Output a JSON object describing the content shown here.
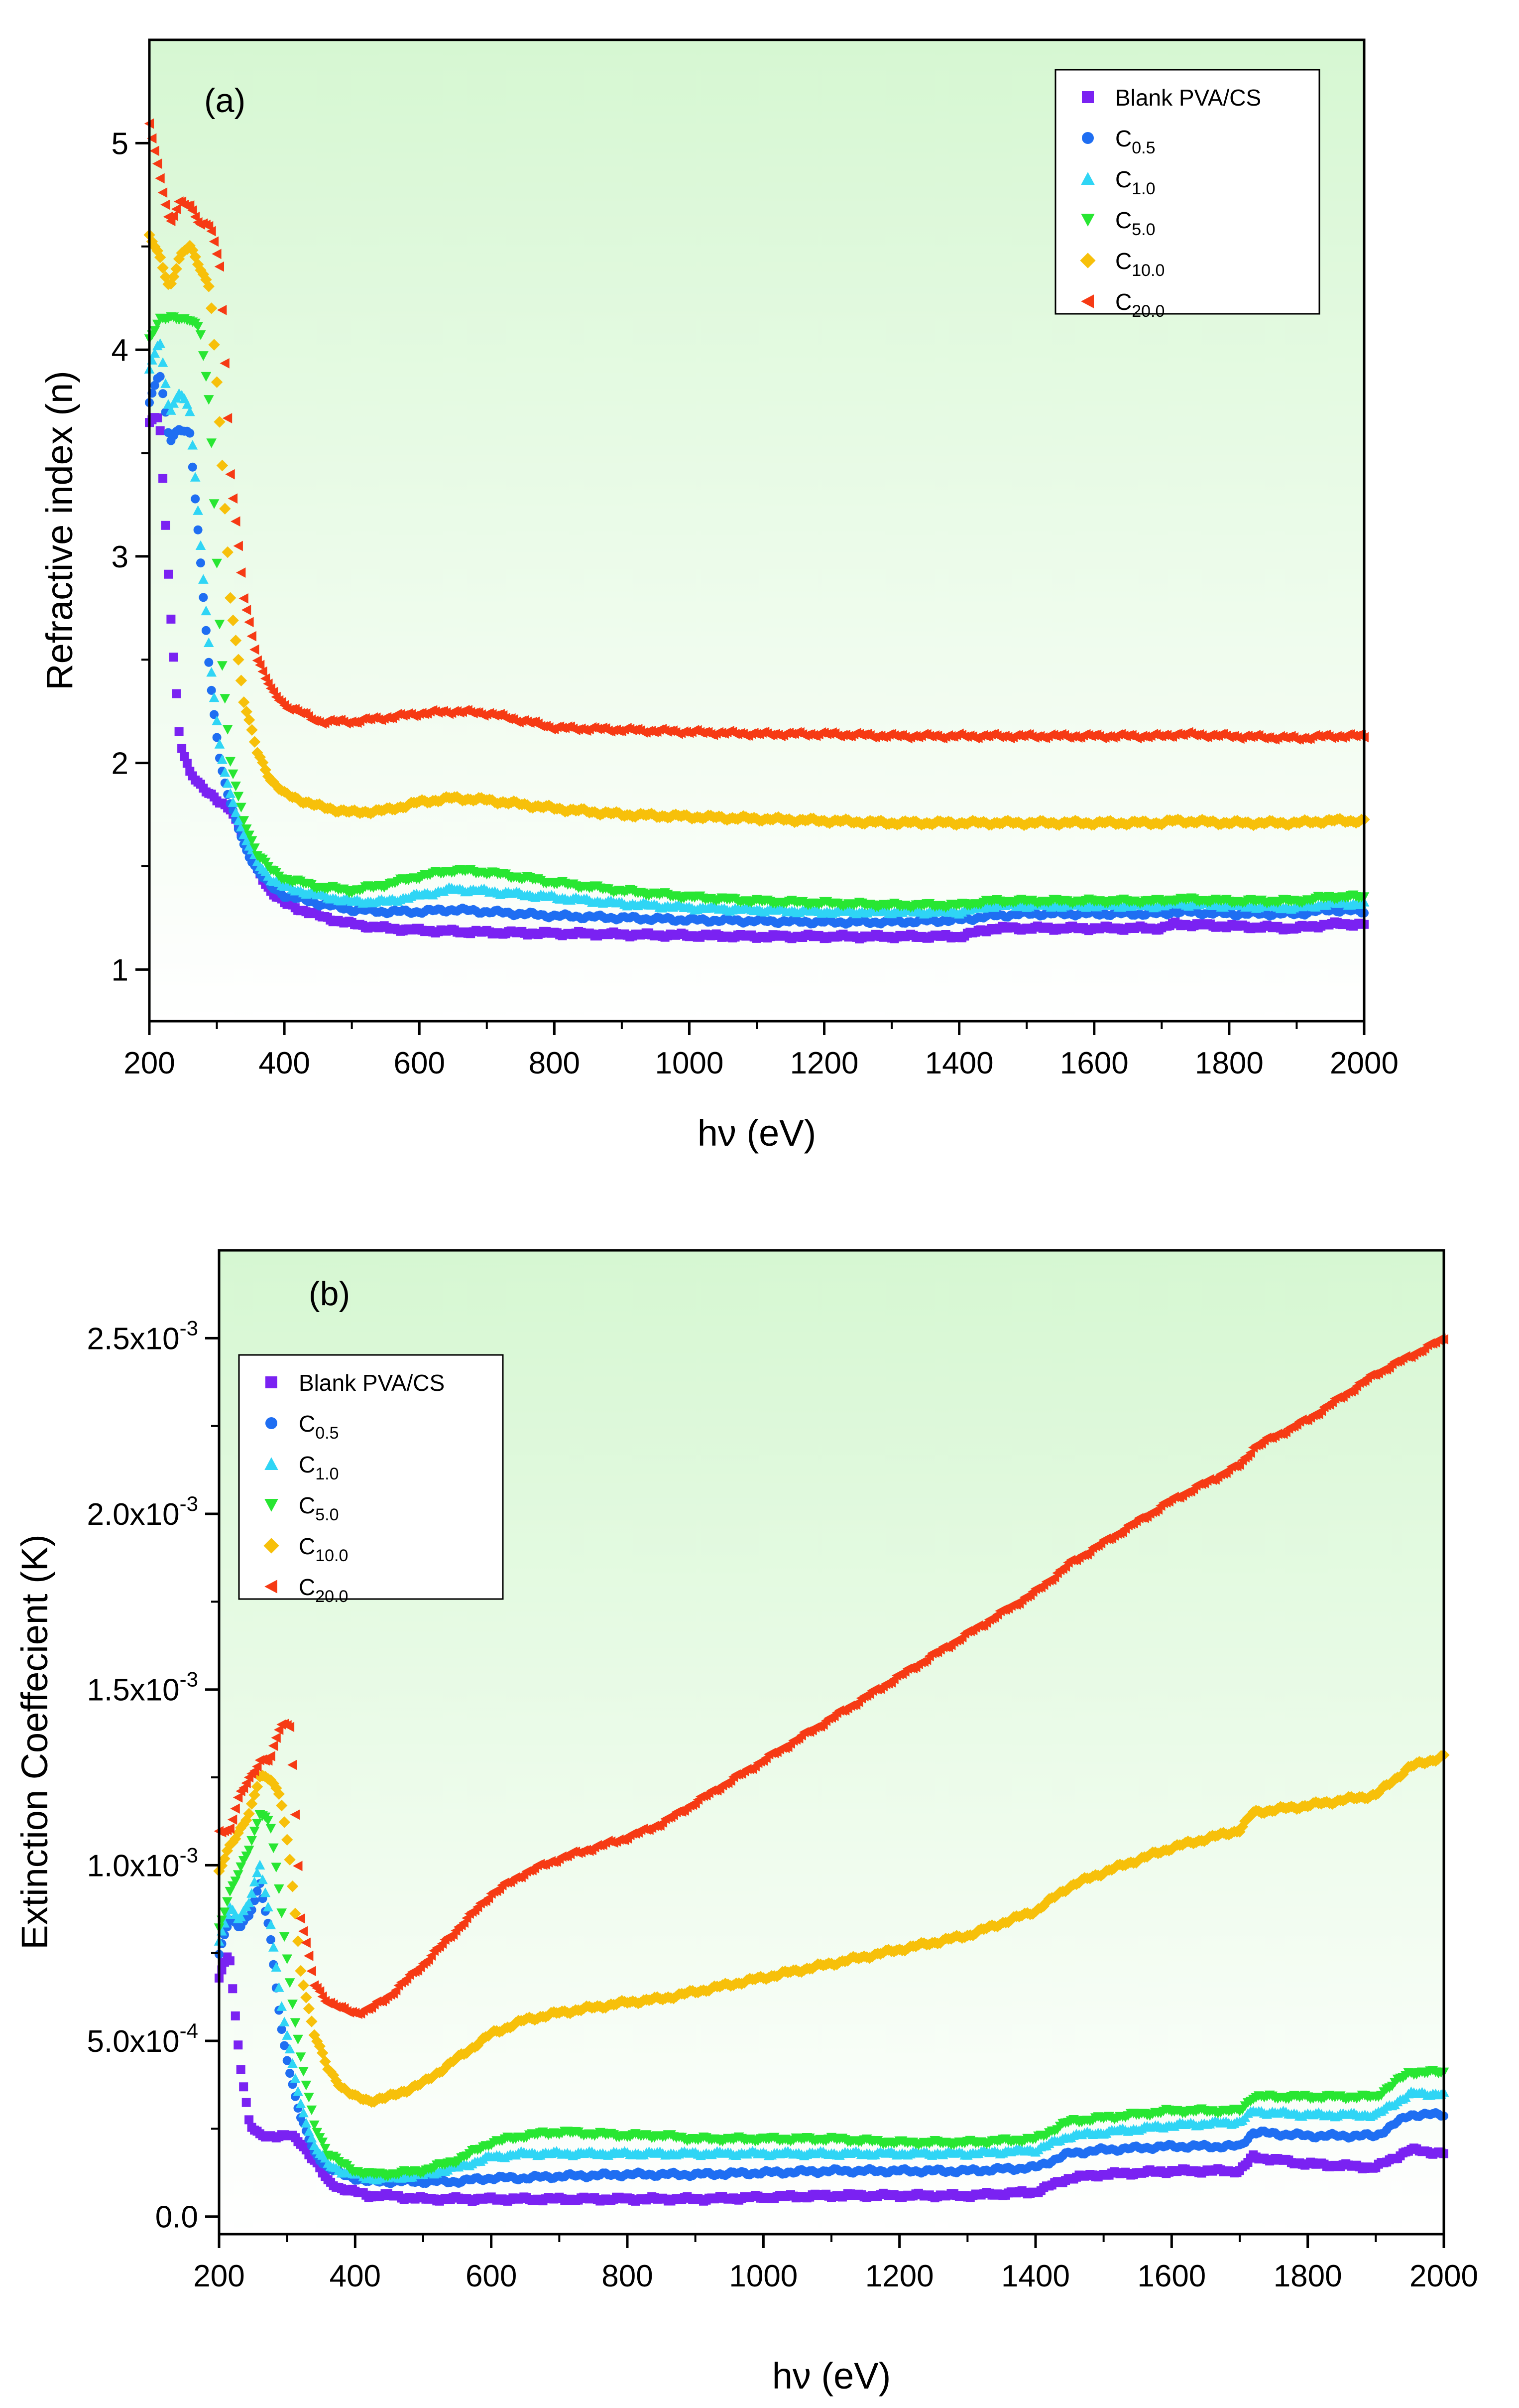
{
  "legend_entries": [
    {
      "id": "blank",
      "base": "Blank PVA/CS",
      "sub": "",
      "marker": "square",
      "color": "#7a22f2"
    },
    {
      "id": "c05",
      "base": "C",
      "sub": "0.5",
      "marker": "circle",
      "color": "#1f6ef2"
    },
    {
      "id": "c10",
      "base": "C",
      "sub": "1.0",
      "marker": "triangle-up",
      "color": "#2fd5f5"
    },
    {
      "id": "c50",
      "base": "C",
      "sub": "5.0",
      "marker": "triangle-down",
      "color": "#28e632"
    },
    {
      "id": "c100",
      "base": "C",
      "sub": "10.0",
      "marker": "diamond",
      "color": "#f7c00a"
    },
    {
      "id": "c200",
      "base": "C",
      "sub": "20.0",
      "marker": "triangle-left",
      "color": "#f63a14"
    }
  ],
  "chart_data": [
    {
      "type": "scatter",
      "panel_label": "(a)",
      "title": "",
      "xlabel": "hν (eV)",
      "ylabel": "Refractive index (n)",
      "xlim": [
        200,
        2000
      ],
      "ylim": [
        0.75,
        5.5
      ],
      "xticks": [
        200,
        400,
        600,
        800,
        1000,
        1200,
        1400,
        1600,
        1800,
        2000
      ],
      "yticks": [
        1,
        2,
        3,
        4,
        5
      ],
      "ytick_labels": [
        "1",
        "2",
        "3",
        "4",
        "5"
      ],
      "legend_position": "top-right",
      "background": "gradient white-to-light-green",
      "x": [
        200,
        215,
        230,
        245,
        260,
        275,
        290,
        305,
        320,
        340,
        360,
        380,
        400,
        450,
        500,
        550,
        600,
        650,
        700,
        800,
        900,
        1000,
        1100,
        1200,
        1300,
        1400,
        1450,
        1500,
        1600,
        1700,
        1720,
        1800,
        1900,
        1950,
        2000
      ],
      "series": [
        {
          "name": "Blank PVA/CS",
          "values": [
            3.65,
            3.67,
            2.8,
            2.1,
            1.95,
            1.9,
            1.85,
            1.8,
            1.78,
            1.65,
            1.48,
            1.38,
            1.32,
            1.26,
            1.22,
            1.2,
            1.19,
            1.185,
            1.18,
            1.175,
            1.17,
            1.165,
            1.16,
            1.16,
            1.16,
            1.16,
            1.2,
            1.2,
            1.2,
            1.2,
            1.22,
            1.21,
            1.2,
            1.22,
            1.22
          ]
        },
        {
          "name": "C0.5",
          "values": [
            3.75,
            3.9,
            3.55,
            3.62,
            3.6,
            3.0,
            2.4,
            2.0,
            1.8,
            1.6,
            1.48,
            1.4,
            1.36,
            1.32,
            1.29,
            1.28,
            1.28,
            1.29,
            1.28,
            1.26,
            1.25,
            1.24,
            1.235,
            1.23,
            1.23,
            1.24,
            1.26,
            1.27,
            1.27,
            1.27,
            1.28,
            1.27,
            1.27,
            1.29,
            1.28
          ]
        },
        {
          "name": "C1.0",
          "values": [
            3.9,
            4.05,
            3.7,
            3.8,
            3.7,
            3.1,
            2.5,
            2.05,
            1.85,
            1.65,
            1.52,
            1.44,
            1.4,
            1.36,
            1.33,
            1.33,
            1.36,
            1.39,
            1.38,
            1.35,
            1.32,
            1.3,
            1.29,
            1.28,
            1.28,
            1.28,
            1.31,
            1.31,
            1.31,
            1.31,
            1.32,
            1.31,
            1.3,
            1.32,
            1.32
          ]
        },
        {
          "name": "C5.0",
          "values": [
            4.05,
            4.15,
            4.15,
            4.15,
            4.15,
            4.1,
            3.7,
            2.6,
            2.0,
            1.72,
            1.56,
            1.48,
            1.44,
            1.4,
            1.38,
            1.41,
            1.45,
            1.48,
            1.47,
            1.42,
            1.38,
            1.35,
            1.33,
            1.32,
            1.31,
            1.31,
            1.33,
            1.33,
            1.33,
            1.33,
            1.34,
            1.33,
            1.33,
            1.35,
            1.35
          ]
        },
        {
          "name": "C10.0",
          "values": [
            4.55,
            4.45,
            4.3,
            4.45,
            4.5,
            4.4,
            4.3,
            3.6,
            2.8,
            2.3,
            2.05,
            1.92,
            1.85,
            1.79,
            1.76,
            1.77,
            1.81,
            1.83,
            1.82,
            1.78,
            1.75,
            1.74,
            1.73,
            1.72,
            1.71,
            1.71,
            1.71,
            1.71,
            1.71,
            1.71,
            1.72,
            1.71,
            1.71,
            1.72,
            1.72
          ]
        },
        {
          "name": "C20.0",
          "values": [
            5.1,
            4.85,
            4.6,
            4.72,
            4.7,
            4.6,
            4.6,
            4.4,
            3.4,
            2.8,
            2.5,
            2.35,
            2.28,
            2.2,
            2.2,
            2.22,
            2.24,
            2.25,
            2.24,
            2.17,
            2.16,
            2.15,
            2.14,
            2.14,
            2.13,
            2.13,
            2.13,
            2.13,
            2.13,
            2.13,
            2.14,
            2.13,
            2.12,
            2.13,
            2.13
          ]
        }
      ]
    },
    {
      "type": "scatter",
      "panel_label": "(b)",
      "title": "",
      "xlabel": "hν (eV)",
      "ylabel": "Extinction Coeffecient (K)",
      "xlim": [
        200,
        2000
      ],
      "ylim": [
        -5e-05,
        0.00275
      ],
      "xticks": [
        200,
        400,
        600,
        800,
        1000,
        1200,
        1400,
        1600,
        1800,
        2000
      ],
      "yticks": [
        0,
        0.0005,
        0.001,
        0.0015,
        0.002,
        0.0025
      ],
      "ytick_labels": [
        {
          "mant": "0.0",
          "exp": ""
        },
        {
          "mant": "5.0x10",
          "exp": "-4"
        },
        {
          "mant": "1.0x10",
          "exp": "-3"
        },
        {
          "mant": "1.5x10",
          "exp": "-3"
        },
        {
          "mant": "2.0x10",
          "exp": "-3"
        },
        {
          "mant": "2.5x10",
          "exp": "-3"
        }
      ],
      "legend_position": "top-left",
      "background": "gradient white-to-light-green",
      "x": [
        200,
        215,
        230,
        245,
        260,
        275,
        290,
        305,
        320,
        340,
        360,
        380,
        400,
        420,
        450,
        500,
        550,
        600,
        650,
        700,
        800,
        850,
        900,
        1000,
        1100,
        1200,
        1300,
        1400,
        1450,
        1500,
        1600,
        1700,
        1720,
        1800,
        1900,
        1950,
        2000
      ],
      "series": [
        {
          "name": "Blank PVA/CS",
          "values": [
            0.00068,
            0.00075,
            0.00045,
            0.00026,
            0.00023,
            0.00023,
            0.00023,
            0.00023,
            0.00021,
            0.00016,
            0.0001,
            8e-05,
            7e-05,
            6e-05,
            6e-05,
            5e-05,
            5e-05,
            5e-05,
            5e-05,
            5e-05,
            5e-05,
            5e-05,
            5e-05,
            5.5e-05,
            6e-05,
            6e-05,
            6e-05,
            7e-05,
            0.00011,
            0.00012,
            0.00013,
            0.00013,
            0.00017,
            0.00015,
            0.00014,
            0.00019,
            0.00018
          ]
        },
        {
          "name": "C0.5",
          "values": [
            0.00075,
            0.00085,
            0.00082,
            0.00086,
            0.00095,
            0.0008,
            0.00055,
            0.0004,
            0.00028,
            0.00018,
            0.00014,
            0.00012,
            0.00011,
            0.0001,
            0.0001,
            0.0001,
            0.0001,
            0.00011,
            0.00011,
            0.000115,
            0.00012,
            0.00012,
            0.00012,
            0.000125,
            0.00013,
            0.00013,
            0.00013,
            0.00014,
            0.00018,
            0.00019,
            0.0002,
            0.0002,
            0.00024,
            0.00023,
            0.00023,
            0.00029,
            0.00029
          ]
        },
        {
          "name": "C1.0",
          "values": [
            0.00078,
            0.00088,
            0.00085,
            0.0009,
            0.001,
            0.00085,
            0.00062,
            0.00046,
            0.00032,
            0.0002,
            0.00015,
            0.00013,
            0.00012,
            0.00011,
            0.00011,
            0.00012,
            0.00014,
            0.00017,
            0.00018,
            0.00018,
            0.00018,
            0.00018,
            0.00018,
            0.00018,
            0.00018,
            0.00018,
            0.00018,
            0.00019,
            0.00023,
            0.00024,
            0.00026,
            0.00027,
            0.0003,
            0.00029,
            0.00029,
            0.00035,
            0.00035
          ]
        },
        {
          "name": "C5.0",
          "values": [
            0.00082,
            0.00092,
            0.00098,
            0.00105,
            0.00115,
            0.00112,
            0.0009,
            0.00065,
            0.00045,
            0.00026,
            0.00018,
            0.00015,
            0.00013,
            0.00012,
            0.00012,
            0.00013,
            0.00016,
            0.00021,
            0.00023,
            0.00024,
            0.00023,
            0.00023,
            0.00022,
            0.00022,
            0.00022,
            0.00021,
            0.00021,
            0.00022,
            0.00027,
            0.00028,
            0.0003,
            0.0003,
            0.00034,
            0.00034,
            0.00034,
            0.00041,
            0.00041
          ]
        },
        {
          "name": "C10.0",
          "values": [
            0.00098,
            0.00105,
            0.0011,
            0.00115,
            0.00125,
            0.00125,
            0.0012,
            0.001,
            0.0007,
            0.00052,
            0.00042,
            0.00037,
            0.00034,
            0.00033,
            0.00034,
            0.00038,
            0.00045,
            0.00052,
            0.00056,
            0.00058,
            0.00061,
            0.00062,
            0.00064,
            0.00068,
            0.00072,
            0.00076,
            0.0008,
            0.00087,
            0.00094,
            0.00098,
            0.00105,
            0.0011,
            0.00115,
            0.00117,
            0.0012,
            0.00128,
            0.00131
          ]
        },
        {
          "name": "C20.0",
          "values": [
            0.0011,
            0.0011,
            0.0012,
            0.00125,
            0.0013,
            0.0013,
            0.0014,
            0.0014,
            0.00085,
            0.00066,
            0.00061,
            0.00059,
            0.00058,
            0.00059,
            0.00063,
            0.00072,
            0.00082,
            0.00092,
            0.00098,
            0.00102,
            0.00108,
            0.00112,
            0.00118,
            0.0013,
            0.00142,
            0.00154,
            0.00166,
            0.00178,
            0.00186,
            0.00192,
            0.00204,
            0.00214,
            0.00219,
            0.00227,
            0.0024,
            0.00245,
            0.0025
          ]
        }
      ]
    }
  ]
}
